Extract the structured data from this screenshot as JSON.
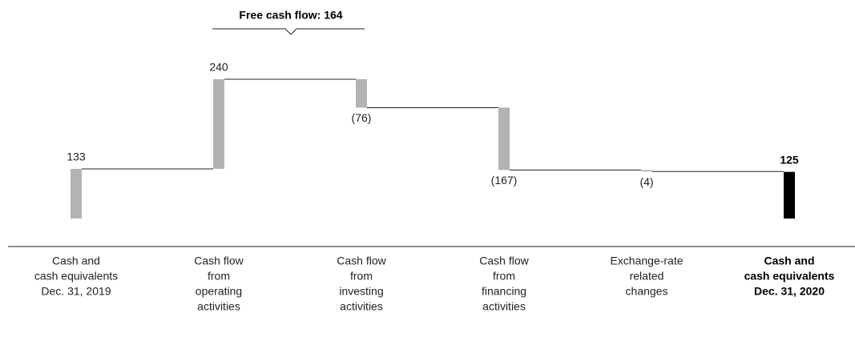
{
  "chart_data": {
    "type": "waterfall",
    "categories": [
      [
        "Cash and",
        "cash equivalents",
        "Dec. 31, 2019"
      ],
      [
        "Cash flow",
        "from",
        "operating",
        "activities"
      ],
      [
        "Cash flow",
        "from",
        "investing",
        "activities"
      ],
      [
        "Cash flow",
        "from",
        "financing",
        "activities"
      ],
      [
        "Exchange-rate",
        "related",
        "changes"
      ],
      [
        "Cash and",
        "cash equivalents",
        "Dec. 31, 2020"
      ]
    ],
    "values": [
      133,
      240,
      -76,
      -167,
      -4,
      125
    ],
    "value_labels": [
      "133",
      "240",
      "(76)",
      "(167)",
      "(4)",
      "125"
    ],
    "colors": [
      "#b3b3b3",
      "#b3b3b3",
      "#b3b3b3",
      "#b3b3b3",
      "#b3b3b3",
      "#000000"
    ],
    "annotation": "Free cash flow: 164"
  }
}
